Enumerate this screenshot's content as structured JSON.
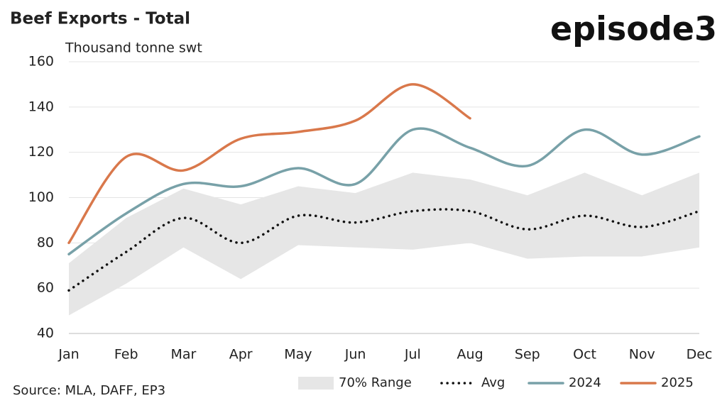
{
  "chart_data": {
    "type": "line",
    "title": "Beef Exports - Total",
    "logo": "episode3",
    "ylabel": "Thousand tonne swt",
    "source": "Source: MLA, DAFF, EP3",
    "categories": [
      "Jan",
      "Feb",
      "Mar",
      "Apr",
      "May",
      "Jun",
      "Jul",
      "Aug",
      "Sep",
      "Oct",
      "Nov",
      "Dec"
    ],
    "ylim": [
      40,
      160
    ],
    "yticks": [
      40,
      60,
      80,
      100,
      120,
      140,
      160
    ],
    "grid": true,
    "range": {
      "name": "70% Range",
      "color": "#e6e6e6",
      "upper": [
        71,
        91,
        104,
        97,
        105,
        102,
        111,
        108,
        101,
        111,
        101,
        111
      ],
      "lower": [
        48,
        62,
        78,
        64,
        79,
        78,
        77,
        80,
        73,
        74,
        74,
        78
      ]
    },
    "series": [
      {
        "name": "Avg",
        "color": "#111111",
        "style": "dotted",
        "values": [
          59,
          76,
          91,
          80,
          92,
          89,
          94,
          94,
          86,
          92,
          87,
          94
        ]
      },
      {
        "name": "2024",
        "color": "#78a1a8",
        "style": "solid",
        "values": [
          75,
          93,
          106,
          105,
          113,
          106,
          130,
          122,
          114,
          130,
          119,
          127
        ]
      },
      {
        "name": "2025",
        "color": "#d9784b",
        "style": "solid",
        "values": [
          80,
          118,
          112,
          126,
          129,
          134,
          150,
          135,
          null,
          null,
          null,
          null
        ]
      }
    ]
  }
}
